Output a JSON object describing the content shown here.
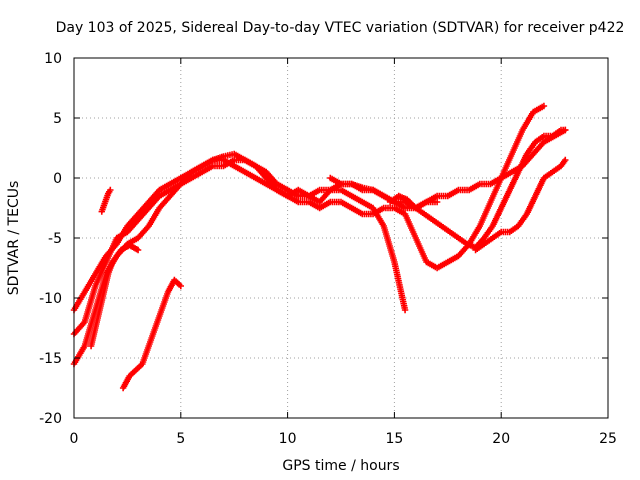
{
  "chart_data": {
    "type": "scatter",
    "title": "Day 103 of 2025, Sidereal Day-to-day VTEC variation (SDTVAR) for receiver p422",
    "xlabel": "GPS time / hours",
    "ylabel": "SDTVAR / TECUs",
    "xlim": [
      0,
      25
    ],
    "ylim": [
      -20,
      10
    ],
    "xticks": [
      "0",
      "5",
      "10",
      "15",
      "20",
      "25"
    ],
    "yticks": [
      "10",
      "5",
      "0",
      "-5",
      "-10",
      "-15",
      "-20"
    ],
    "grid": true,
    "marker": "plus",
    "color": "#ff0000",
    "series": [
      {
        "x": [
          0.0,
          0.5,
          1.0,
          1.5,
          2.0,
          2.5,
          3.0,
          3.5,
          4.0,
          4.5,
          5.0,
          5.5,
          6.0,
          6.5,
          7.0,
          7.5,
          8.0,
          8.5,
          9.0,
          9.5,
          10.0,
          10.5,
          11.0,
          11.5,
          12.0,
          12.5,
          13.0,
          13.5,
          14.0,
          14.5,
          15.0,
          15.5,
          16.0,
          16.5,
          17.0,
          17.5,
          18.0,
          18.5,
          19.0,
          19.5,
          20.0,
          20.5,
          21.0,
          21.5,
          22.0,
          22.5,
          23.0
        ],
        "y": [
          -11.0,
          -9.5,
          -8.0,
          -6.5,
          -5.5,
          -4.0,
          -3.0,
          -2.0,
          -1.0,
          -0.5,
          0.0,
          0.5,
          1.0,
          1.5,
          1.8,
          2.0,
          1.5,
          1.0,
          0.5,
          -0.5,
          -1.0,
          -1.5,
          -1.5,
          -1.0,
          -1.0,
          -0.5,
          -0.5,
          -1.0,
          -1.0,
          -1.5,
          -2.0,
          -2.5,
          -2.5,
          -2.0,
          -1.5,
          -1.5,
          -1.0,
          -1.0,
          -0.5,
          -0.5,
          0.0,
          0.5,
          1.0,
          2.0,
          3.0,
          3.5,
          4.0
        ]
      },
      {
        "x": [
          0.0,
          0.5,
          1.0,
          1.5,
          2.0,
          2.5,
          3.0,
          3.5,
          4.0,
          4.5,
          5.0,
          5.5,
          6.0,
          6.5,
          7.0,
          7.5,
          8.0,
          8.5,
          9.0,
          9.5,
          10.0,
          10.5,
          11.0,
          11.5,
          12.0,
          12.5,
          13.0,
          13.5,
          14.0,
          14.5,
          15.0,
          15.5
        ],
        "y": [
          -13.0,
          -12.0,
          -9.0,
          -7.0,
          -5.0,
          -4.5,
          -3.5,
          -2.5,
          -1.5,
          -1.0,
          -0.5,
          0.0,
          0.5,
          1.0,
          1.0,
          1.5,
          1.5,
          1.0,
          0.0,
          -1.0,
          -1.5,
          -1.0,
          -1.5,
          -2.0,
          -1.0,
          -1.0,
          -1.5,
          -2.0,
          -2.5,
          -4.0,
          -7.0,
          -11.0
        ]
      },
      {
        "x": [
          0.0,
          0.5,
          1.0,
          1.5,
          2.0,
          2.5,
          3.0,
          3.5,
          4.0,
          4.5,
          5.0,
          5.5,
          6.0,
          6.5,
          7.0,
          7.5,
          8.0,
          8.5,
          9.0,
          9.5,
          10.0,
          10.5,
          11.0,
          11.5,
          12.0,
          12.5,
          13.0,
          13.5,
          14.0,
          14.5,
          15.0,
          15.5,
          16.0,
          16.5,
          17.0,
          17.5,
          18.0,
          18.5,
          19.0,
          19.5,
          20.0,
          20.5,
          21.0,
          21.5,
          22.0
        ],
        "y": [
          -15.5,
          -14.0,
          -11.0,
          -8.0,
          -6.5,
          -5.5,
          -5.0,
          -4.0,
          -2.5,
          -1.5,
          -0.5,
          0.5,
          1.0,
          1.5,
          1.5,
          1.0,
          0.5,
          0.0,
          -0.5,
          -1.0,
          -1.5,
          -2.0,
          -2.0,
          -2.5,
          -2.0,
          -2.0,
          -2.5,
          -3.0,
          -3.0,
          -2.5,
          -2.5,
          -3.0,
          -5.0,
          -7.0,
          -7.5,
          -7.0,
          -6.5,
          -5.5,
          -4.0,
          -2.0,
          0.0,
          2.0,
          4.0,
          5.5,
          6.0
        ]
      },
      {
        "x": [
          0.8,
          1.0,
          1.2,
          1.4,
          1.6,
          1.8,
          2.0,
          2.2,
          2.4,
          2.6,
          2.8,
          3.0
        ],
        "y": [
          -14.0,
          -12.5,
          -11.0,
          -9.5,
          -8.0,
          -7.0,
          -6.5,
          -6.0,
          -5.8,
          -5.6,
          -5.8,
          -6.0
        ]
      },
      {
        "x": [
          1.3,
          1.4,
          1.5,
          1.6,
          1.7
        ],
        "y": [
          -2.8,
          -2.3,
          -1.8,
          -1.3,
          -1.0
        ]
      },
      {
        "x": [
          2.3,
          2.6,
          2.9,
          3.2,
          3.5,
          3.8,
          4.1,
          4.4,
          4.7,
          5.0
        ],
        "y": [
          -17.5,
          -16.5,
          -16.0,
          -15.5,
          -14.0,
          -12.5,
          -11.0,
          -9.5,
          -8.5,
          -9.0
        ]
      },
      {
        "x": [
          14.8,
          15.2,
          15.6,
          16.0,
          16.4,
          16.8,
          17.2,
          17.6,
          18.0,
          18.4,
          18.8,
          19.2,
          19.6,
          20.0,
          20.4,
          20.8,
          21.2,
          21.6,
          22.0,
          22.4,
          22.8,
          23.0
        ],
        "y": [
          -2.0,
          -1.5,
          -1.8,
          -2.5,
          -3.0,
          -3.5,
          -4.0,
          -4.5,
          -5.0,
          -5.5,
          -5.8,
          -5.0,
          -4.0,
          -2.5,
          -1.0,
          0.5,
          2.0,
          3.0,
          3.5,
          3.5,
          4.0,
          4.0
        ]
      },
      {
        "x": [
          18.8,
          19.2,
          19.6,
          20.0,
          20.4,
          20.8,
          21.2,
          21.6,
          22.0,
          22.4,
          22.8,
          23.0
        ],
        "y": [
          -6.0,
          -5.5,
          -5.0,
          -4.5,
          -4.5,
          -4.0,
          -3.0,
          -1.5,
          0.0,
          0.5,
          1.0,
          1.5
        ]
      },
      {
        "x": [
          12.0,
          12.5,
          13.0,
          13.5,
          14.0,
          14.5,
          15.0,
          15.5,
          16.0,
          16.5,
          17.0
        ],
        "y": [
          0.0,
          -0.5,
          -0.5,
          -0.8,
          -1.0,
          -1.5,
          -2.0,
          -2.0,
          -2.5,
          -2.0,
          -2.0
        ]
      }
    ]
  }
}
